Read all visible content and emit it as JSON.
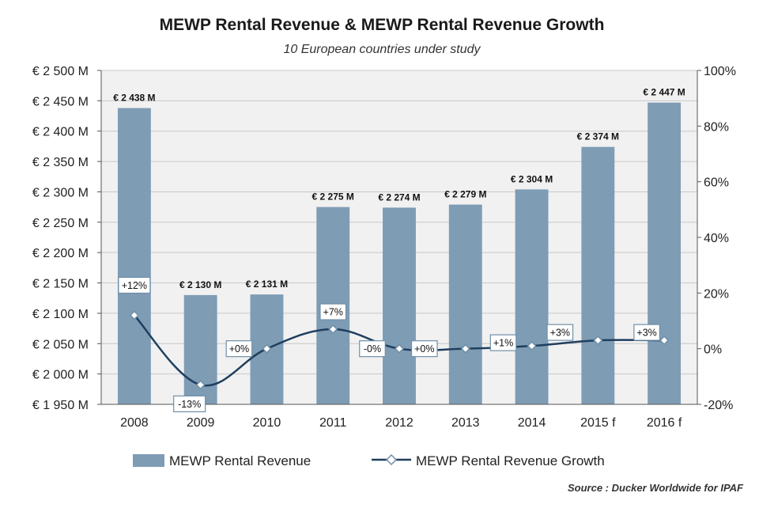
{
  "chart_data": {
    "type": "bar",
    "title": "MEWP Rental Revenue & MEWP Rental Revenue Growth",
    "subtitle": "10 European countries under study",
    "categories": [
      "2008",
      "2009",
      "2010",
      "2011",
      "2012",
      "2013",
      "2014",
      "2015 f",
      "2016 f"
    ],
    "series": [
      {
        "name": "MEWP Rental Revenue",
        "type": "bar",
        "axis": "left",
        "color": "#7f9cb5",
        "values": [
          2438,
          2130,
          2131,
          2275,
          2274,
          2279,
          2304,
          2374,
          2447
        ],
        "labels": [
          "€ 2 438 M",
          "€ 2 130 M",
          "€ 2 131 M",
          "€ 2 275 M",
          "€ 2 274 M",
          "€ 2 279 M",
          "€ 2 304 M",
          "€ 2 374 M",
          "€ 2 447 M"
        ]
      },
      {
        "name": "MEWP Rental Revenue Growth",
        "type": "line",
        "axis": "right",
        "color": "#1f3f5e",
        "values": [
          12,
          -13,
          0,
          7,
          0,
          0,
          1,
          3,
          3
        ],
        "labels": [
          "+12%",
          "-13%",
          "+0%",
          "+7%",
          "-0%",
          "+0%",
          "+1%",
          "+3%",
          "+3%"
        ]
      }
    ],
    "y_left": {
      "ylim": [
        1950,
        2500
      ],
      "ticks": [
        1950,
        2000,
        2050,
        2100,
        2150,
        2200,
        2250,
        2300,
        2350,
        2400,
        2450,
        2500
      ],
      "tick_labels": [
        "€ 1 950 M",
        "€ 2 000 M",
        "€ 2 050 M",
        "€ 2 100 M",
        "€ 2 150 M",
        "€ 2 200 M",
        "€ 2 250 M",
        "€ 2 300 M",
        "€ 2 350 M",
        "€ 2 400 M",
        "€ 2 450 M",
        "€ 2 500 M"
      ]
    },
    "y_right": {
      "ylim": [
        -20,
        100
      ],
      "ticks": [
        -20,
        0,
        20,
        40,
        60,
        80,
        100
      ],
      "tick_labels": [
        "-20%",
        "0%",
        "20%",
        "40%",
        "60%",
        "80%",
        "100%"
      ]
    },
    "grid": true,
    "legend": "bottom",
    "plot_background": "#f1f1f1"
  },
  "source": "Source : Ducker Worldwide for IPAF"
}
